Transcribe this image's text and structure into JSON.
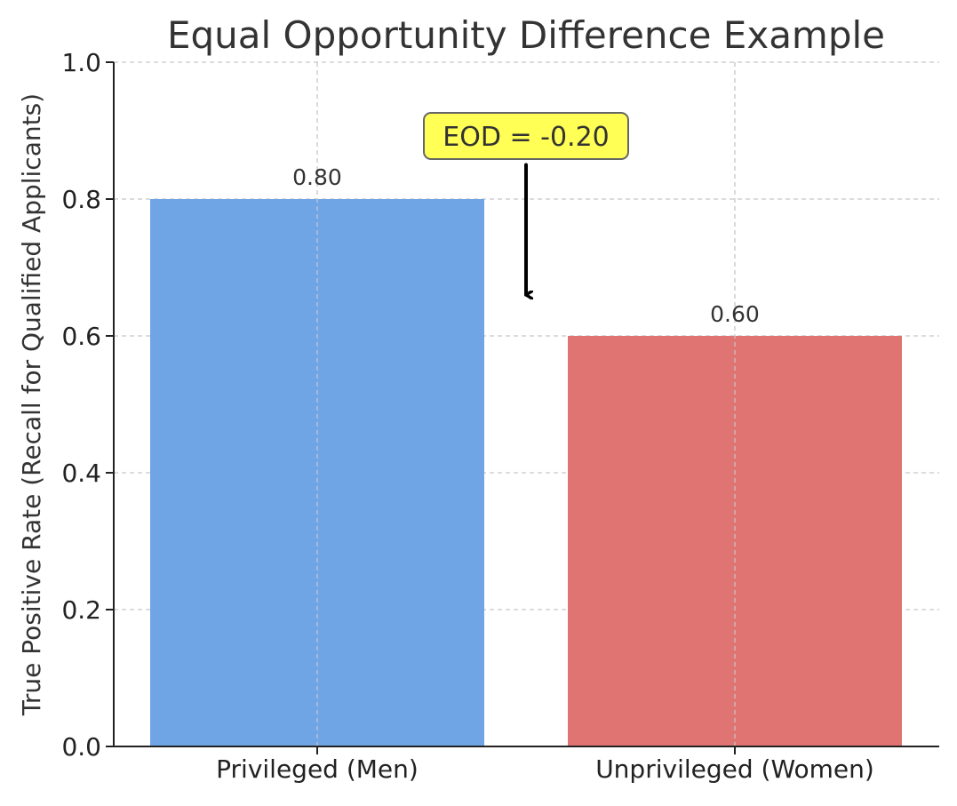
{
  "chart_data": {
    "type": "bar",
    "title": "Equal Opportunity Difference Example",
    "xlabel": "",
    "ylabel": "True Positive Rate (Recall for Qualified Applicants)",
    "categories": [
      "Privileged (Men)",
      "Unprivileged (Women)"
    ],
    "values": [
      0.8,
      0.6
    ],
    "value_labels": [
      "0.80",
      "0.60"
    ],
    "colors": [
      "#6fa5e5",
      "#e07472"
    ],
    "ylim": [
      0,
      1
    ],
    "yticks": [
      0,
      0.2,
      0.4,
      0.6,
      0.8,
      1.0
    ],
    "ytick_labels": [
      "0.0",
      "0.2",
      "0.4",
      "0.6",
      "0.8",
      "1.0"
    ],
    "grid": true,
    "annotation": {
      "text": "EOD = -0.20",
      "arrow_from_value": 0.85,
      "arrow_to_value": 0.66,
      "box_color": "#ffff55"
    }
  }
}
